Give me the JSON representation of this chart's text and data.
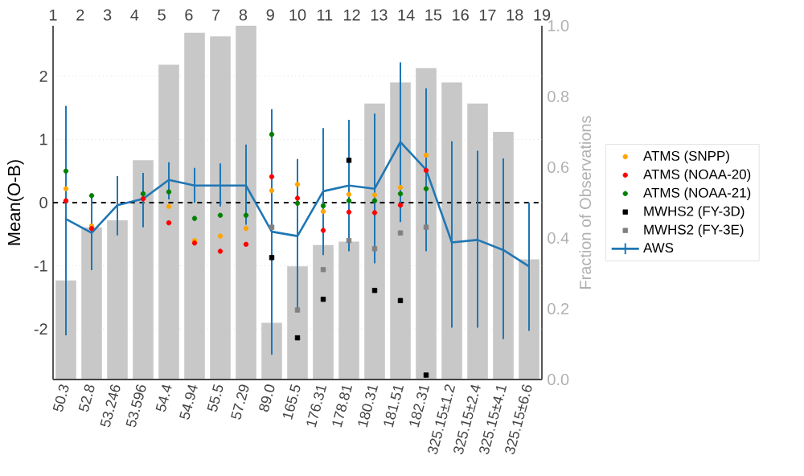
{
  "chart_data": {
    "type": "scatter",
    "ylabel": "Mean(O-B)",
    "y2label": "Fraction of Observations",
    "categories": [
      "50.3",
      "52.8",
      "53.246",
      "53.596",
      "54.4",
      "54.94",
      "55.5",
      "57.29",
      "89.0",
      "165.5",
      "176.31",
      "178.81",
      "180.31",
      "181.51",
      "182.31",
      "325.15±1.2",
      "325.15±2.4",
      "325.15±4.1",
      "325.15±6.6"
    ],
    "ylim": [
      -2.8,
      2.8
    ],
    "yticks": [
      -2,
      -1,
      0,
      1,
      2
    ],
    "y2lim": [
      0,
      1
    ],
    "y2ticks": [
      {
        "value": 0,
        "label": "0.0"
      },
      0.2,
      0.4,
      0.6,
      0.8,
      {
        "value": 1,
        "label": "1.0"
      }
    ],
    "x2lim": [
      1,
      19
    ],
    "x2ticks": [
      1,
      2,
      3,
      4,
      5,
      6,
      7,
      8,
      9,
      10,
      11,
      12,
      13,
      14,
      15,
      16,
      17,
      18,
      19
    ],
    "grid": "y",
    "legend": "right",
    "ref_lines": [
      {
        "axis": "y",
        "value": 0,
        "color": "#000000",
        "line_style": "dashed"
      }
    ],
    "series": [
      {
        "type": "bar",
        "axis": "y2",
        "color": "#c8c8c8",
        "values": [
          0.28,
          0.43,
          0.45,
          0.62,
          0.89,
          0.98,
          0.97,
          1.0,
          0.16,
          0.32,
          0.38,
          0.39,
          0.78,
          0.84,
          0.88,
          0.84,
          0.78,
          0.7,
          0.34
        ]
      },
      {
        "name": "ATMS (SNPP)",
        "marker": "circle",
        "color": "#ffa500",
        "values": [
          0.22,
          -0.37,
          null,
          null,
          -0.06,
          -0.6,
          -0.53,
          -0.41,
          0.19,
          0.29,
          -0.14,
          0.13,
          0.12,
          0.24,
          0.75,
          null,
          null,
          null,
          null
        ]
      },
      {
        "name": "ATMS (NOAA-20)",
        "marker": "circle",
        "color": "#ff0000",
        "values": [
          0.03,
          -0.41,
          null,
          0.06,
          -0.32,
          -0.64,
          -0.77,
          -0.66,
          0.41,
          0.07,
          -0.44,
          -0.15,
          -0.16,
          -0.04,
          0.51,
          null,
          null,
          null,
          null
        ]
      },
      {
        "name": "ATMS (NOAA-21)",
        "marker": "circle",
        "color": "#008000",
        "values": [
          0.5,
          0.11,
          null,
          0.14,
          0.17,
          -0.25,
          -0.2,
          -0.2,
          1.08,
          -0.01,
          -0.05,
          0.03,
          0.03,
          0.14,
          0.22,
          null,
          null,
          null,
          null
        ]
      },
      {
        "name": "MWHS2 (FY-3D)",
        "marker": "square",
        "color": "#000000",
        "values": [
          null,
          null,
          null,
          null,
          null,
          null,
          null,
          null,
          -0.87,
          -2.14,
          -1.53,
          0.67,
          -1.39,
          -1.55,
          -2.73,
          null,
          null,
          null,
          null
        ]
      },
      {
        "name": "MWHS2 (FY-3E)",
        "marker": "square",
        "color": "#808080",
        "values": [
          null,
          null,
          null,
          null,
          null,
          null,
          null,
          null,
          -0.39,
          -1.7,
          -1.06,
          -0.6,
          -0.73,
          -0.48,
          -0.39,
          null,
          null,
          null,
          null
        ]
      },
      {
        "name": "AWS",
        "type": "line",
        "marker": "none",
        "color": "#1f77b4",
        "values": [
          -0.26,
          -0.48,
          -0.04,
          0.06,
          0.36,
          0.27,
          0.27,
          0.27,
          -0.46,
          -0.53,
          0.18,
          0.27,
          0.22,
          0.96,
          0.52,
          -0.63,
          -0.59,
          -0.75,
          -1.01
        ],
        "errors": [
          [
            -2.1,
            1.53
          ],
          [
            -1.07,
            0.1
          ],
          [
            -0.52,
            0.42
          ],
          [
            -0.39,
            0.47
          ],
          [
            0.05,
            0.64
          ],
          [
            0.0,
            0.55
          ],
          [
            -0.06,
            0.62
          ],
          [
            -0.35,
            0.92
          ],
          [
            -2.41,
            1.48
          ],
          [
            -1.72,
            0.69
          ],
          [
            -0.83,
            1.18
          ],
          [
            -0.77,
            1.31
          ],
          [
            -0.96,
            1.41
          ],
          [
            -0.31,
            2.22
          ],
          [
            -0.77,
            1.81
          ],
          [
            -1.98,
            0.97
          ],
          [
            -1.98,
            0.82
          ],
          [
            -2.16,
            0.7
          ],
          [
            -2.03,
            0.0
          ]
        ]
      }
    ]
  }
}
